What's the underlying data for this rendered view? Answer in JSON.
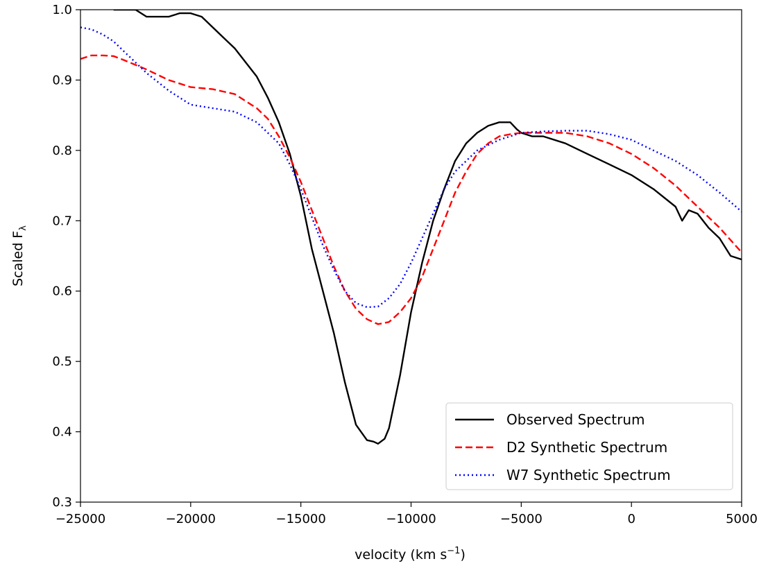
{
  "chart_data": {
    "type": "line",
    "xlabel": "velocity (km s",
    "xlabel_sup": "−1",
    "xlabel_close": ")",
    "ylabel": "Scaled F",
    "ylabel_sub": "λ",
    "xlim": [
      -25000,
      5000
    ],
    "ylim": [
      0.3,
      1.0
    ],
    "xticks": [
      -25000,
      -20000,
      -15000,
      -10000,
      -5000,
      0,
      5000
    ],
    "xtick_labels": [
      "−25000",
      "−20000",
      "−15000",
      "−10000",
      "−5000",
      "0",
      "5000"
    ],
    "yticks": [
      0.3,
      0.4,
      0.5,
      0.6,
      0.7,
      0.8,
      0.9,
      1.0
    ],
    "ytick_labels": [
      "0.3",
      "0.4",
      "0.5",
      "0.6",
      "0.7",
      "0.8",
      "0.9",
      "1.0"
    ],
    "grid": false,
    "legend_position": "bottom-right",
    "series": [
      {
        "name": "Observed Spectrum",
        "color": "#000000",
        "style": "solid",
        "x": [
          -23500,
          -22500,
          -22000,
          -21500,
          -21000,
          -20500,
          -20000,
          -19500,
          -19000,
          -18500,
          -18000,
          -17500,
          -17000,
          -16500,
          -16000,
          -15500,
          -15000,
          -14500,
          -14000,
          -13500,
          -13000,
          -12500,
          -12000,
          -11700,
          -11500,
          -11200,
          -11000,
          -10500,
          -10000,
          -9500,
          -9000,
          -8500,
          -8000,
          -7500,
          -7000,
          -6500,
          -6000,
          -5500,
          -5200,
          -5000,
          -4500,
          -4000,
          -3000,
          -2000,
          -1000,
          0,
          1000,
          2000,
          2300,
          2600,
          3000,
          3500,
          4000,
          4500,
          5000
        ],
        "y": [
          1.0,
          1.0,
          0.99,
          0.99,
          0.99,
          0.995,
          0.995,
          0.99,
          0.975,
          0.96,
          0.945,
          0.925,
          0.905,
          0.875,
          0.84,
          0.795,
          0.735,
          0.66,
          0.6,
          0.54,
          0.47,
          0.41,
          0.388,
          0.386,
          0.383,
          0.39,
          0.405,
          0.48,
          0.57,
          0.64,
          0.7,
          0.745,
          0.785,
          0.81,
          0.825,
          0.835,
          0.84,
          0.84,
          0.83,
          0.825,
          0.82,
          0.82,
          0.81,
          0.795,
          0.78,
          0.765,
          0.745,
          0.72,
          0.7,
          0.715,
          0.71,
          0.69,
          0.675,
          0.65,
          0.645
        ]
      },
      {
        "name": "D2 Synthetic Spectrum",
        "color": "#ff0000",
        "style": "dashed",
        "x": [
          -25000,
          -24500,
          -24000,
          -23500,
          -23000,
          -22000,
          -21000,
          -20000,
          -19000,
          -18000,
          -17000,
          -16500,
          -16000,
          -15500,
          -15000,
          -14500,
          -14000,
          -13500,
          -13000,
          -12500,
          -12000,
          -11500,
          -11000,
          -10500,
          -10000,
          -9500,
          -9000,
          -8500,
          -8000,
          -7500,
          -7000,
          -6500,
          -6000,
          -5500,
          -5000,
          -4000,
          -3000,
          -2000,
          -1000,
          0,
          1000,
          2000,
          3000,
          4000,
          5000
        ],
        "y": [
          0.93,
          0.935,
          0.935,
          0.934,
          0.928,
          0.915,
          0.9,
          0.89,
          0.887,
          0.88,
          0.86,
          0.845,
          0.82,
          0.79,
          0.755,
          0.715,
          0.675,
          0.635,
          0.6,
          0.575,
          0.56,
          0.553,
          0.556,
          0.57,
          0.59,
          0.62,
          0.66,
          0.7,
          0.74,
          0.77,
          0.795,
          0.81,
          0.82,
          0.823,
          0.825,
          0.825,
          0.825,
          0.82,
          0.81,
          0.795,
          0.775,
          0.75,
          0.72,
          0.69,
          0.655
        ]
      },
      {
        "name": "W7 Synthetic Spectrum",
        "color": "#0000ff",
        "style": "dotted",
        "x": [
          -25000,
          -24500,
          -24000,
          -23500,
          -23000,
          -22000,
          -21000,
          -20000,
          -19000,
          -18000,
          -17000,
          -16000,
          -15500,
          -15000,
          -14500,
          -14000,
          -13500,
          -13000,
          -12500,
          -12000,
          -11500,
          -11000,
          -10500,
          -10000,
          -9500,
          -9000,
          -8500,
          -8000,
          -7000,
          -6000,
          -5000,
          -4000,
          -3000,
          -2000,
          -1000,
          0,
          1000,
          2000,
          3000,
          4000,
          5000
        ],
        "y": [
          0.975,
          0.972,
          0.965,
          0.955,
          0.94,
          0.91,
          0.885,
          0.865,
          0.86,
          0.855,
          0.84,
          0.81,
          0.78,
          0.745,
          0.705,
          0.665,
          0.63,
          0.6,
          0.583,
          0.577,
          0.578,
          0.59,
          0.61,
          0.64,
          0.675,
          0.71,
          0.745,
          0.77,
          0.8,
          0.815,
          0.825,
          0.827,
          0.828,
          0.828,
          0.823,
          0.815,
          0.8,
          0.785,
          0.765,
          0.74,
          0.713
        ]
      }
    ]
  }
}
